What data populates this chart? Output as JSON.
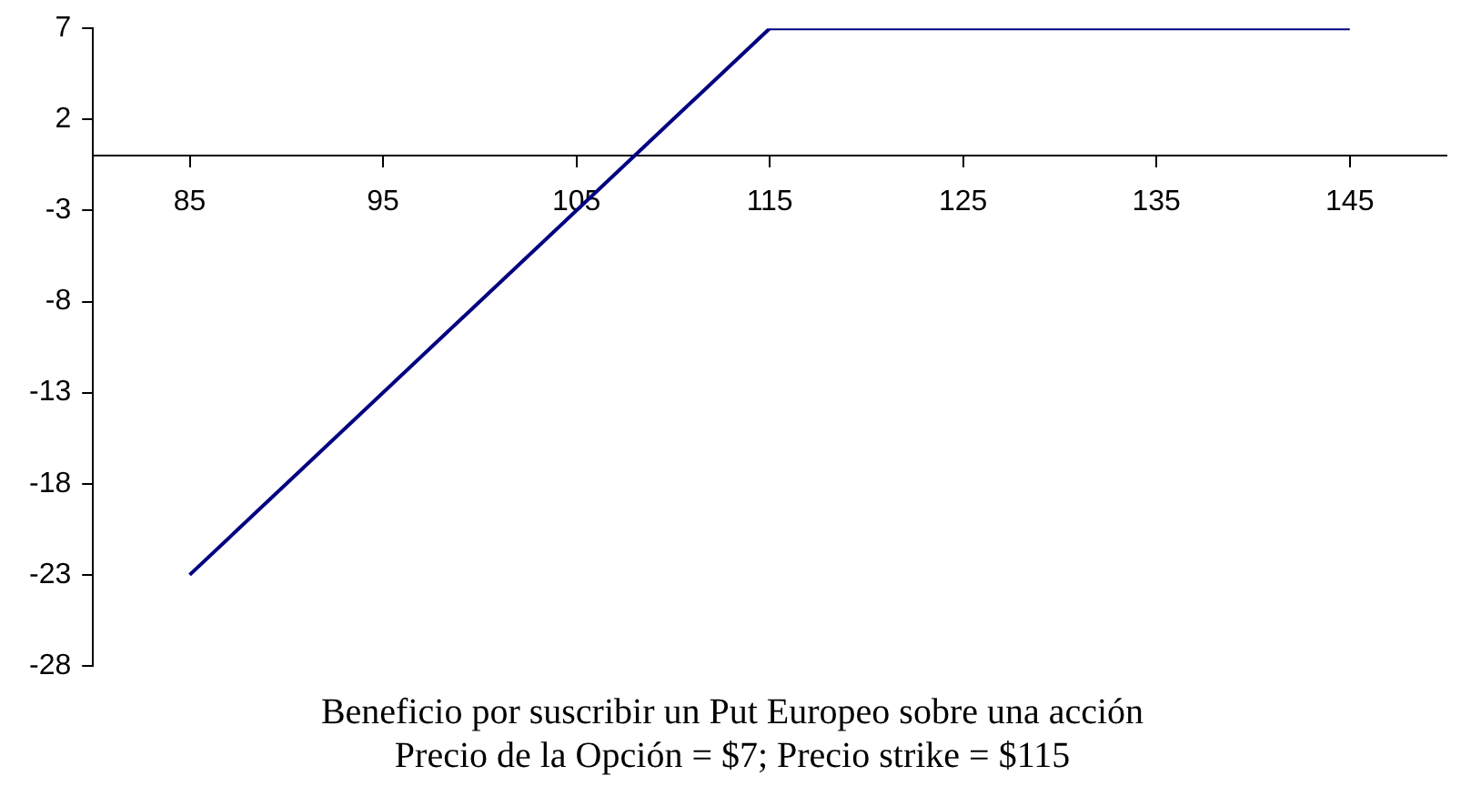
{
  "chart_data": {
    "type": "line",
    "title": "Beneficio por suscribir un Put Europeo sobre una acción",
    "subtitle": "Precio de la Opción = $7; Precio strike = $115",
    "x": [
      85,
      115,
      145
    ],
    "series": [
      {
        "color": "#000080",
        "values": [
          -23,
          7,
          7
        ]
      }
    ],
    "xlim": [
      80,
      150
    ],
    "xticks": [
      85,
      95,
      105,
      115,
      125,
      135,
      145
    ],
    "ylim": [
      -28,
      7
    ],
    "yticks": [
      7,
      2,
      -3,
      -8,
      -13,
      -18,
      -23,
      -28
    ],
    "grid": false,
    "legend": false,
    "marker": "none",
    "line_style": "solid"
  }
}
